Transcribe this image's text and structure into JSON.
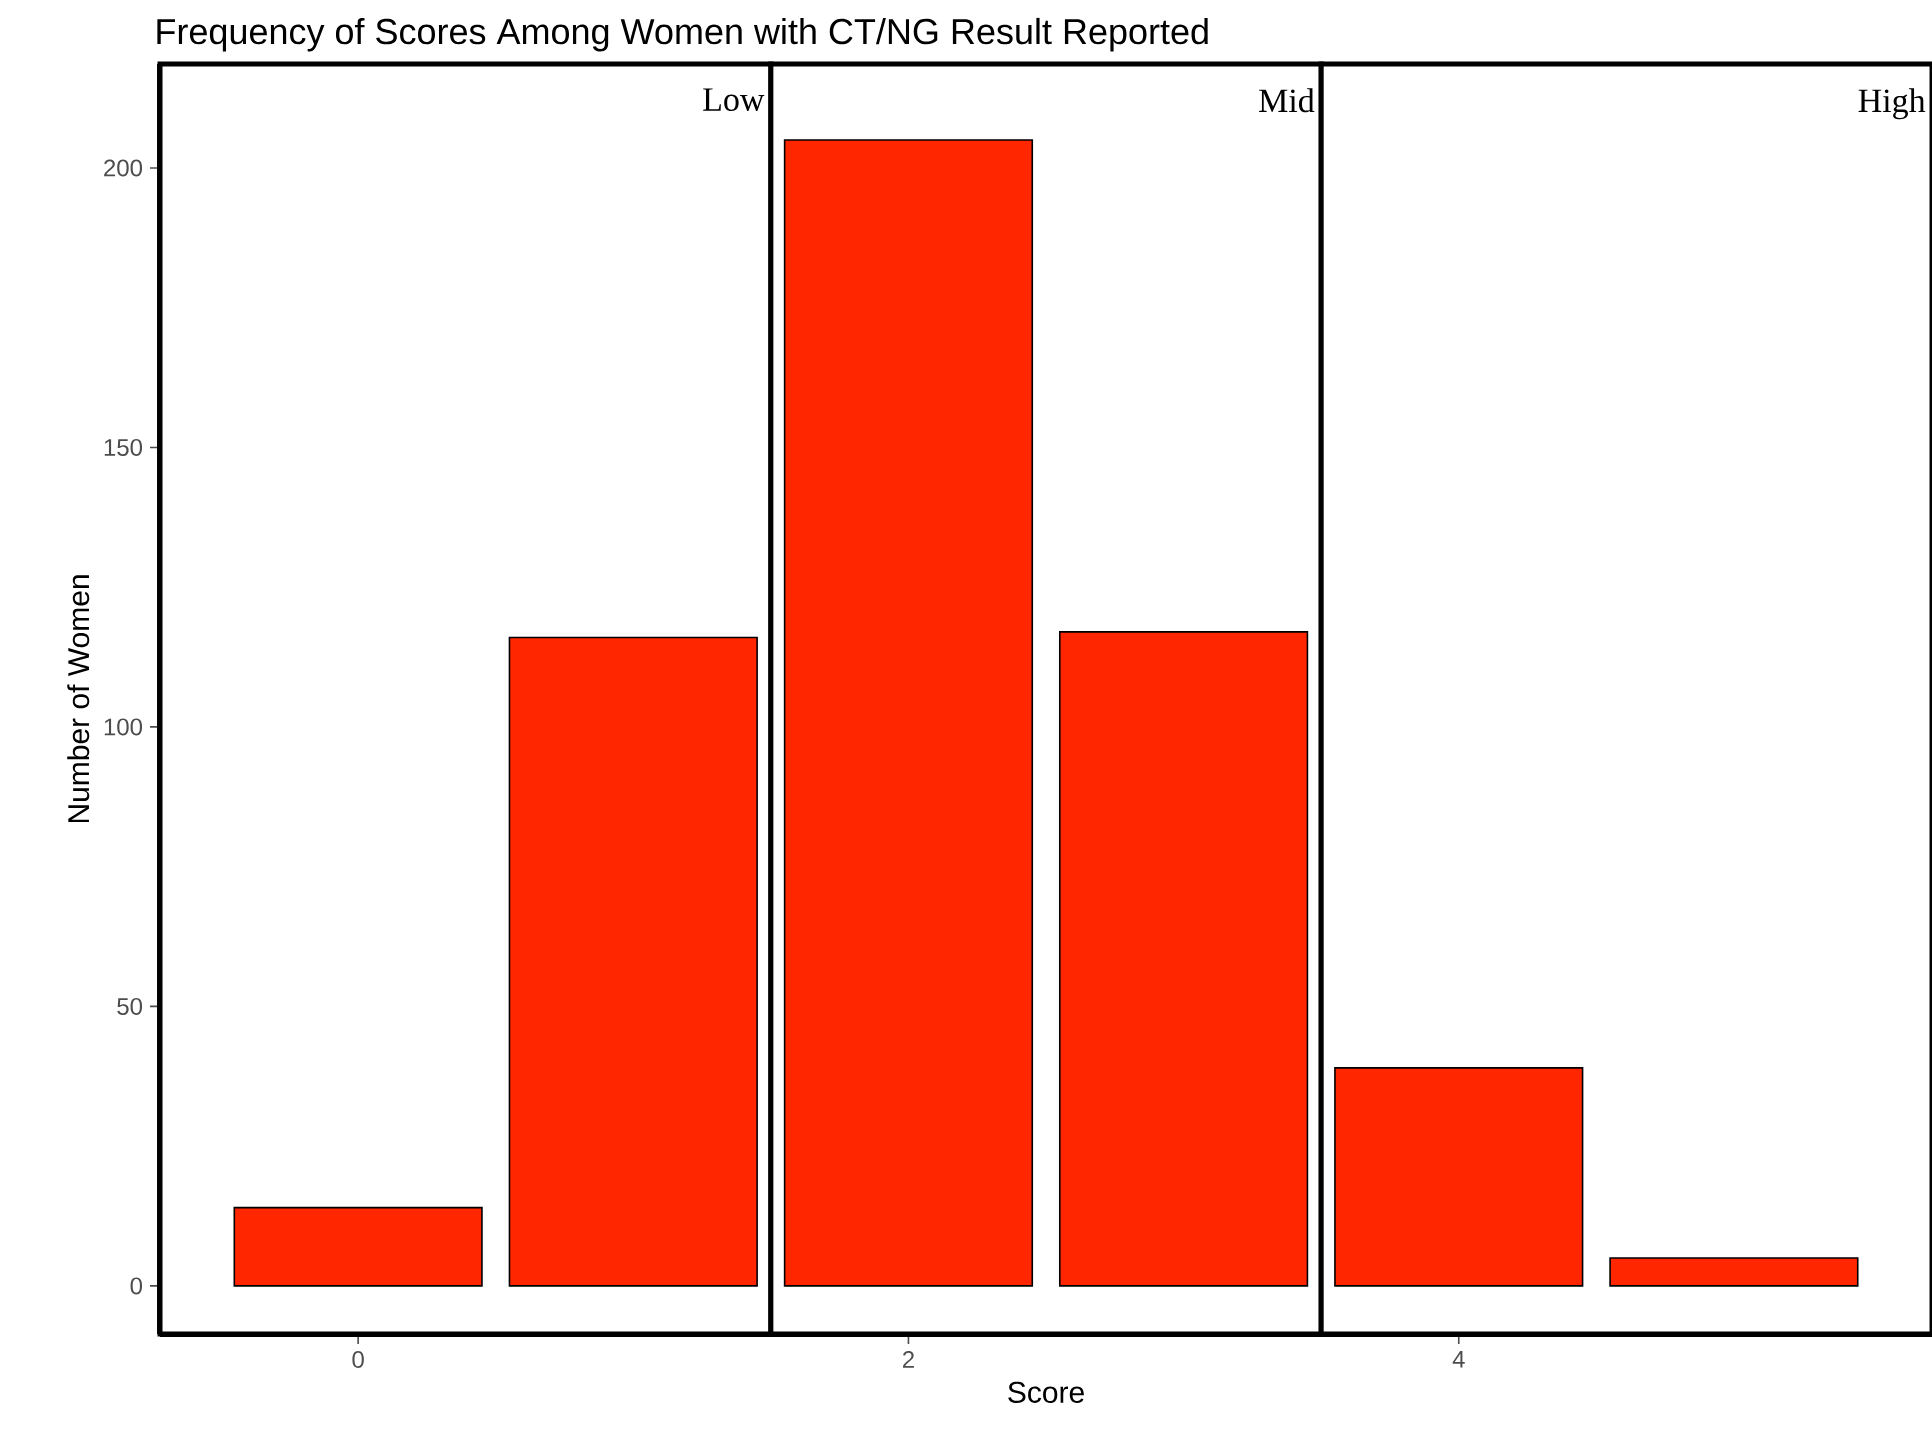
{
  "chart_data": {
    "type": "bar",
    "title": "Frequency of Scores Among Women with CT/NG Result Reported",
    "xlabel": "Score",
    "ylabel": "Number of Women",
    "x": [
      0,
      1,
      2,
      3,
      4,
      5
    ],
    "values": [
      14,
      116,
      205,
      117,
      39,
      5
    ],
    "color": "#ff2600",
    "xlim": [
      -0.72,
      5.72
    ],
    "ylim": [
      -8.6,
      218.6
    ],
    "xticks": [
      0,
      2,
      4
    ],
    "yticks": [
      0,
      50,
      100,
      150,
      200
    ],
    "bands": [
      {
        "axis": "x",
        "from": -0.72,
        "to": 1.5,
        "label": "Low",
        "color": "#ffffff"
      },
      {
        "axis": "x",
        "from": 1.5,
        "to": 3.5,
        "label": "Mid",
        "color": "#ffffff"
      },
      {
        "axis": "x",
        "from": 3.5,
        "to": 5.72,
        "label": "High",
        "color": "#ffffff"
      }
    ]
  }
}
